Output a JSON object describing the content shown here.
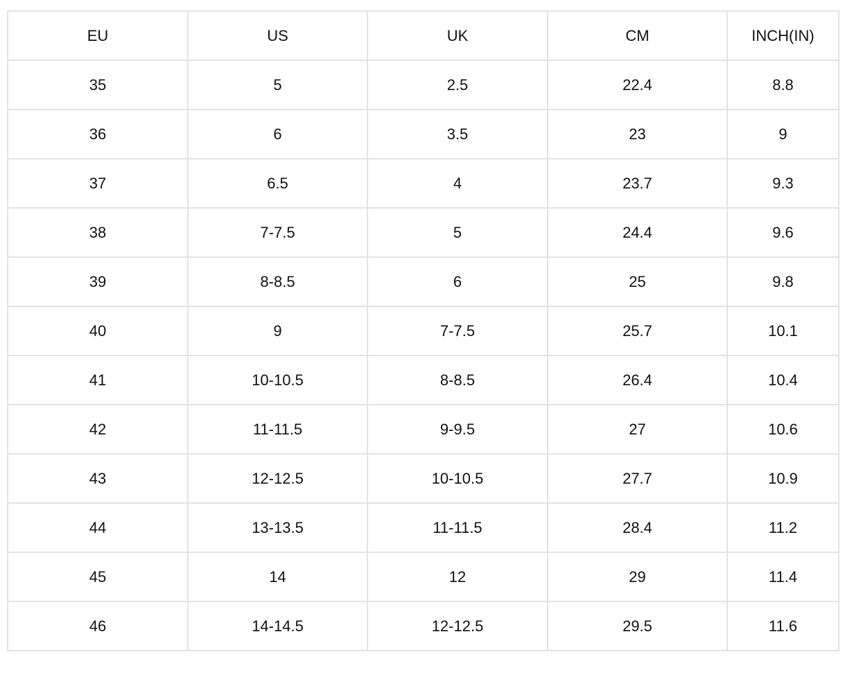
{
  "table": {
    "header": [
      "EU",
      "US",
      "UK",
      "CM",
      "INCH(IN)"
    ],
    "rows": [
      [
        "35",
        "5",
        "2.5",
        "22.4",
        "8.8"
      ],
      [
        "36",
        "6",
        "3.5",
        "23",
        "9"
      ],
      [
        "37",
        "6.5",
        "4",
        "23.7",
        "9.3"
      ],
      [
        "38",
        "7-7.5",
        "5",
        "24.4",
        "9.6"
      ],
      [
        "39",
        "8-8.5",
        "6",
        "25",
        "9.8"
      ],
      [
        "40",
        "9",
        "7-7.5",
        "25.7",
        "10.1"
      ],
      [
        "41",
        "10-10.5",
        "8-8.5",
        "26.4",
        "10.4"
      ],
      [
        "42",
        "11-11.5",
        "9-9.5",
        "27",
        "10.6"
      ],
      [
        "43",
        "12-12.5",
        "10-10.5",
        "27.7",
        "10.9"
      ],
      [
        "44",
        "13-13.5",
        "11-11.5",
        "28.4",
        "11.2"
      ],
      [
        "45",
        "14",
        "12",
        "29",
        "11.4"
      ],
      [
        "46",
        "14-14.5",
        "12-12.5",
        "29.5",
        "11.6"
      ]
    ]
  }
}
